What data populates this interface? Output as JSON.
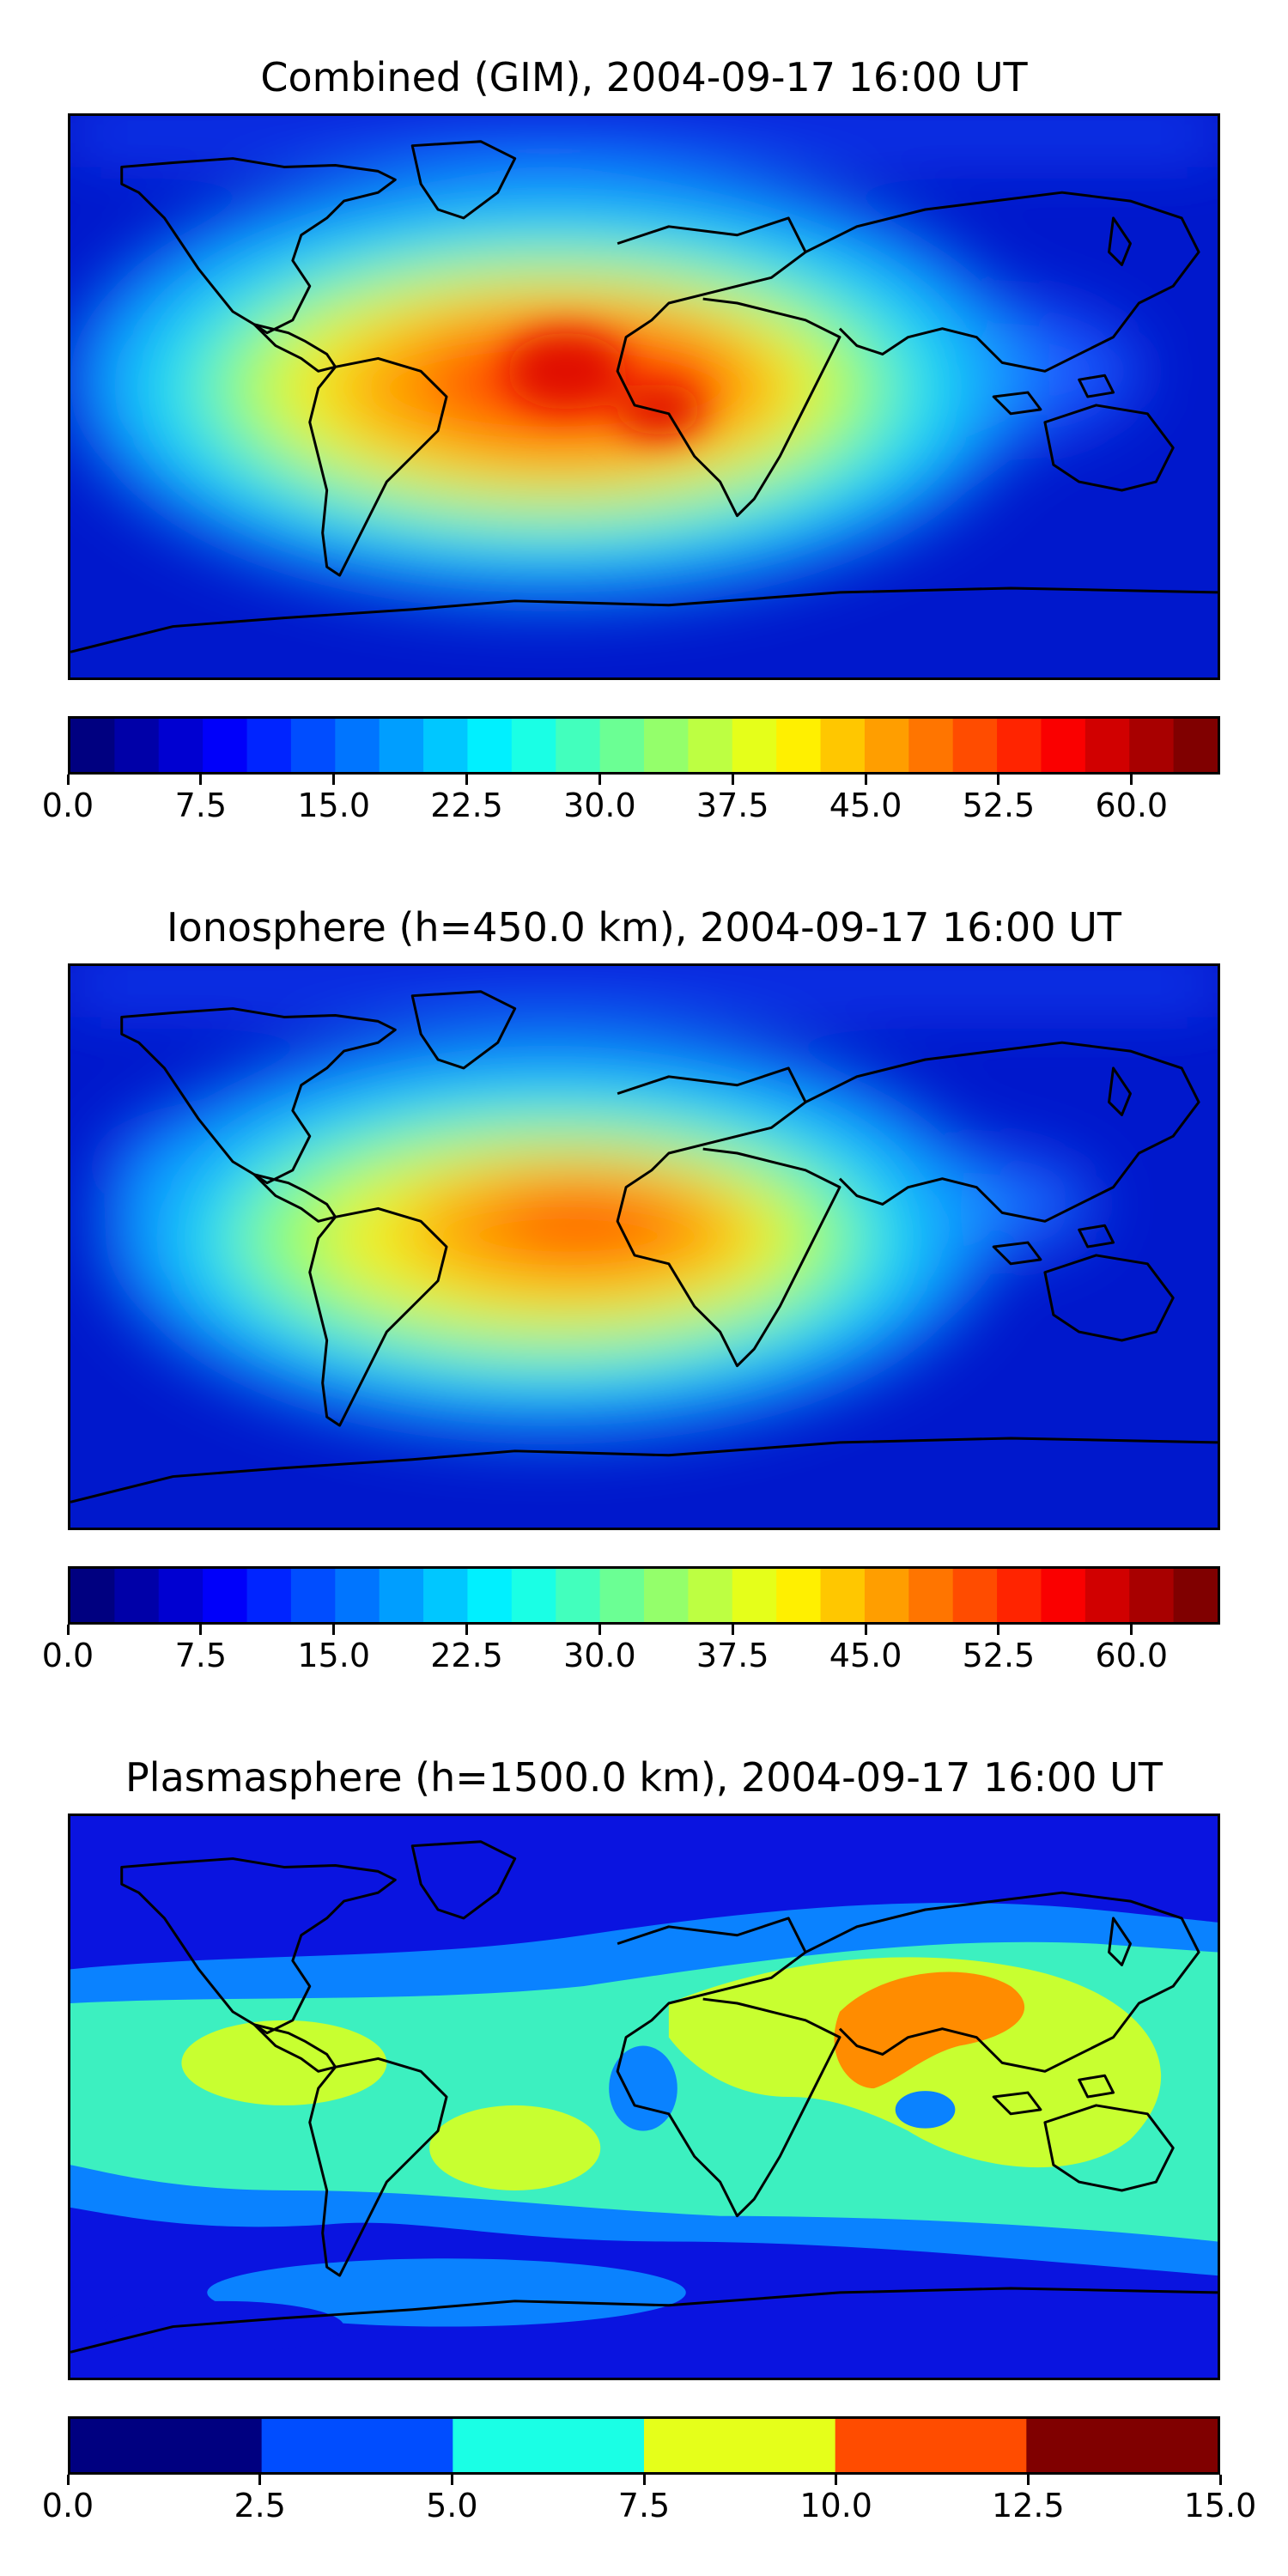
{
  "panels": [
    {
      "title": "Combined (GIM), 2004-09-17 16:00 UT",
      "colorbar": {
        "min": 0.0,
        "max": 65.0,
        "bounds": [
          0,
          2.5,
          5,
          7.5,
          10,
          12.5,
          15,
          17.5,
          20,
          22.5,
          25,
          27.5,
          30,
          32.5,
          35,
          37.5,
          40,
          42.5,
          45,
          47.5,
          50,
          52.5,
          55,
          57.5,
          60,
          62.5,
          65
        ],
        "tick_labels": [
          "0.0",
          "7.5",
          "15.0",
          "22.5",
          "30.0",
          "37.5",
          "45.0",
          "52.5",
          "60.0"
        ],
        "tick_values": [
          0,
          7.5,
          15,
          22.5,
          30,
          37.5,
          45,
          52.5,
          60
        ]
      }
    },
    {
      "title": "Ionosphere  (h=450.0 km), 2004-09-17 16:00 UT",
      "colorbar": {
        "min": 0.0,
        "max": 65.0,
        "bounds": [
          0,
          2.5,
          5,
          7.5,
          10,
          12.5,
          15,
          17.5,
          20,
          22.5,
          25,
          27.5,
          30,
          32.5,
          35,
          37.5,
          40,
          42.5,
          45,
          47.5,
          50,
          52.5,
          55,
          57.5,
          60,
          62.5,
          65
        ],
        "tick_labels": [
          "0.0",
          "7.5",
          "15.0",
          "22.5",
          "30.0",
          "37.5",
          "45.0",
          "52.5",
          "60.0"
        ],
        "tick_values": [
          0,
          7.5,
          15,
          22.5,
          30,
          37.5,
          45,
          52.5,
          60
        ]
      }
    },
    {
      "title": "Plasmasphere (h=1500.0 km), 2004-09-17 16:00 UT",
      "colorbar": {
        "min": 0.0,
        "max": 15.0,
        "bounds": [
          0,
          2.5,
          5,
          7.5,
          10,
          12.5,
          15
        ],
        "tick_labels": [
          "0.0",
          "2.5",
          "5.0",
          "7.5",
          "10.0",
          "12.5",
          "15.0"
        ],
        "tick_values": [
          0,
          2.5,
          5,
          7.5,
          10,
          12.5,
          15
        ]
      }
    }
  ],
  "colormap": "jet"
}
